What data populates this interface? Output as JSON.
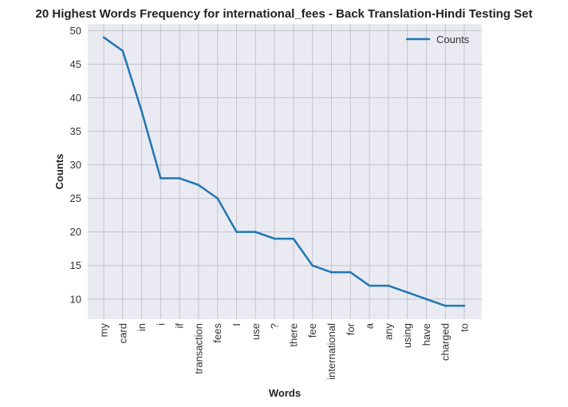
{
  "chart_data": {
    "type": "line",
    "title": "20 Highest Words Frequency for international_fees - Back Translation-Hindi Testing Set",
    "xlabel": "Words",
    "ylabel": "Counts",
    "categories": [
      "my",
      "card",
      "in",
      "i",
      "if",
      "transaction",
      "fees",
      "I",
      "use",
      "?",
      "there",
      "fee",
      "international",
      "for",
      "a",
      "any",
      "using",
      "have",
      "charged",
      "to"
    ],
    "series": [
      {
        "name": "Counts",
        "values": [
          49,
          47,
          38,
          28,
          28,
          27,
          25,
          20,
          20,
          19,
          19,
          15,
          14,
          14,
          12,
          12,
          11,
          10,
          9,
          9
        ]
      }
    ],
    "yticks": [
      10,
      15,
      20,
      25,
      30,
      35,
      40,
      45,
      50
    ],
    "ylim": [
      7,
      51
    ],
    "grid": true,
    "legend_position": "top-right",
    "line_color": "#1f77b4",
    "background_color": "#eaeaf2"
  }
}
